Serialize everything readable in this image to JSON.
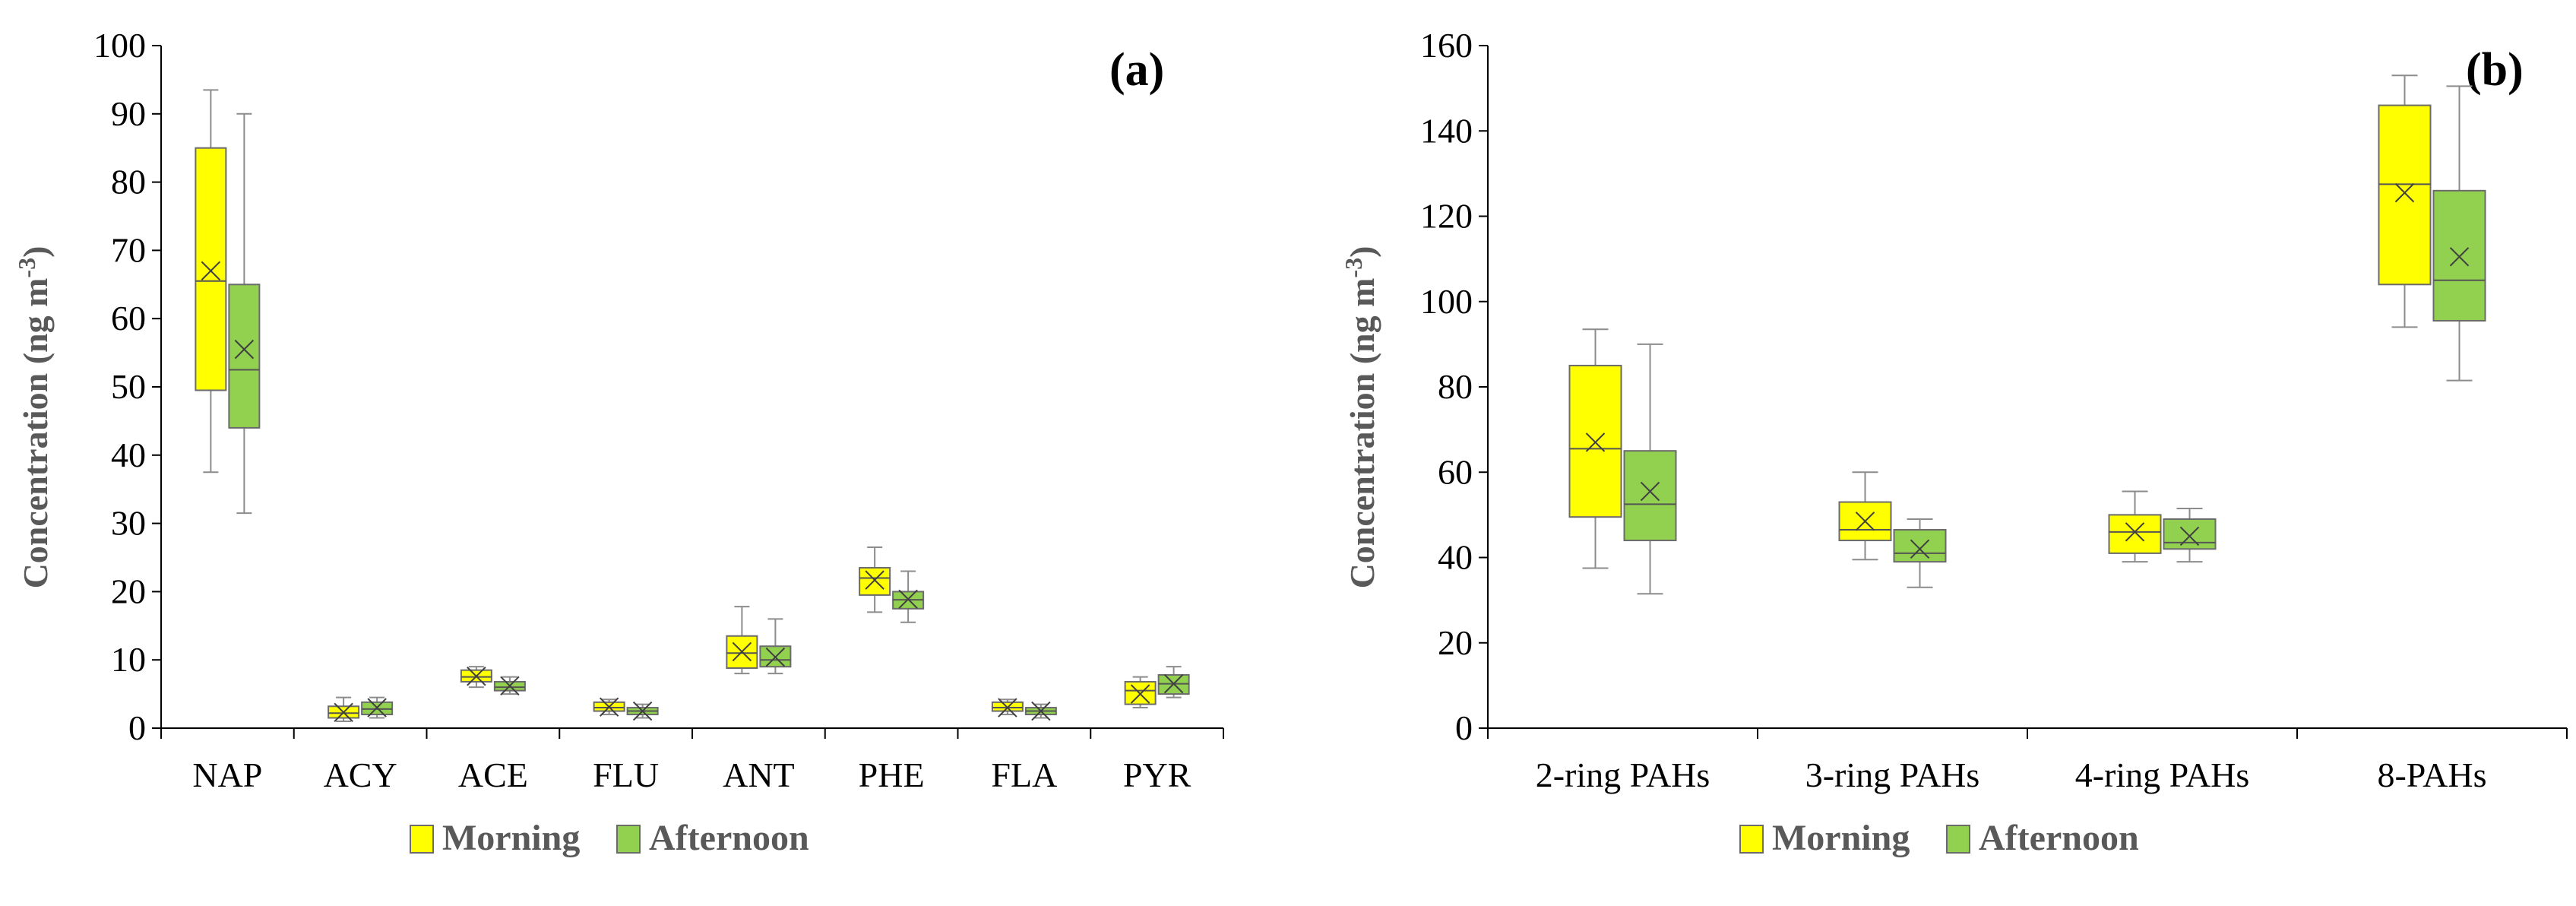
{
  "chart_data": [
    {
      "type": "box",
      "panel_label": "(a)",
      "title": "",
      "xlabel": "",
      "ylabel": "Concentration (ng m",
      "ylabel_sup": "-3",
      "ylabel_end": ")",
      "ylim": [
        0,
        100
      ],
      "yticks": [
        0,
        10,
        20,
        30,
        40,
        50,
        60,
        70,
        80,
        90,
        100
      ],
      "categories": [
        "NAP",
        "ACY",
        "ACE",
        "FLU",
        "ANT",
        "PHE",
        "FLA",
        "PYR"
      ],
      "series": [
        {
          "name": "Morning",
          "color": "#ffff00",
          "boxes": [
            {
              "min": 37.5,
              "q1": 49.5,
              "median": 65.5,
              "q3": 85.0,
              "max": 93.5,
              "mean": 67.0
            },
            {
              "min": 1.0,
              "q1": 1.5,
              "median": 2.2,
              "q3": 3.2,
              "max": 4.5,
              "mean": 2.3
            },
            {
              "min": 6.0,
              "q1": 6.8,
              "median": 7.5,
              "q3": 8.5,
              "max": 9.0,
              "mean": 7.6
            },
            {
              "min": 2.0,
              "q1": 2.5,
              "median": 3.0,
              "q3": 3.8,
              "max": 4.2,
              "mean": 3.1
            },
            {
              "min": 8.0,
              "q1": 8.8,
              "median": 11.0,
              "q3": 13.5,
              "max": 17.8,
              "mean": 11.2
            },
            {
              "min": 17.0,
              "q1": 19.5,
              "median": 22.0,
              "q3": 23.5,
              "max": 26.5,
              "mean": 21.7
            },
            {
              "min": 2.0,
              "q1": 2.5,
              "median": 3.0,
              "q3": 3.8,
              "max": 4.2,
              "mean": 3.0
            },
            {
              "min": 3.0,
              "q1": 3.5,
              "median": 5.5,
              "q3": 6.8,
              "max": 7.5,
              "mean": 5.0
            }
          ]
        },
        {
          "name": "Afternoon",
          "color": "#92d050",
          "boxes": [
            {
              "min": 31.5,
              "q1": 44.0,
              "median": 52.5,
              "q3": 65.0,
              "max": 90.0,
              "mean": 55.5
            },
            {
              "min": 1.5,
              "q1": 2.0,
              "median": 2.8,
              "q3": 3.8,
              "max": 4.5,
              "mean": 3.0
            },
            {
              "min": 5.0,
              "q1": 5.5,
              "median": 6.0,
              "q3": 6.8,
              "max": 7.5,
              "mean": 6.2
            },
            {
              "min": 1.5,
              "q1": 2.0,
              "median": 2.5,
              "q3": 3.0,
              "max": 3.5,
              "mean": 2.5
            },
            {
              "min": 8.0,
              "q1": 9.0,
              "median": 10.0,
              "q3": 12.0,
              "max": 16.0,
              "mean": 10.4
            },
            {
              "min": 15.5,
              "q1": 17.5,
              "median": 18.8,
              "q3": 20.0,
              "max": 23.0,
              "mean": 18.9
            },
            {
              "min": 1.5,
              "q1": 2.0,
              "median": 2.5,
              "q3": 3.0,
              "max": 3.5,
              "mean": 2.5
            },
            {
              "min": 4.5,
              "q1": 5.0,
              "median": 6.5,
              "q3": 7.8,
              "max": 9.0,
              "mean": 6.5
            }
          ]
        }
      ],
      "legend": {
        "position": "bottom",
        "entries": [
          "Morning",
          "Afternoon"
        ]
      }
    },
    {
      "type": "box",
      "panel_label": "(b)",
      "title": "",
      "xlabel": "",
      "ylabel": "Concentration (ng m",
      "ylabel_sup": "-3",
      "ylabel_end": ")",
      "ylim": [
        0,
        160
      ],
      "yticks": [
        0,
        20,
        40,
        60,
        80,
        100,
        120,
        140,
        160
      ],
      "categories": [
        "2-ring PAHs",
        "3-ring PAHs",
        "4-ring PAHs",
        "8-PAHs"
      ],
      "series": [
        {
          "name": "Morning",
          "color": "#ffff00",
          "boxes": [
            {
              "min": 37.5,
              "q1": 49.5,
              "median": 65.5,
              "q3": 85.0,
              "max": 93.5,
              "mean": 67.0
            },
            {
              "min": 39.5,
              "q1": 44.0,
              "median": 46.5,
              "q3": 53.0,
              "max": 60.0,
              "mean": 48.5
            },
            {
              "min": 39.0,
              "q1": 41.0,
              "median": 46.0,
              "q3": 50.0,
              "max": 55.5,
              "mean": 46.0
            },
            {
              "min": 94.0,
              "q1": 104.0,
              "median": 127.5,
              "q3": 146.0,
              "max": 153.0,
              "mean": 125.5
            }
          ]
        },
        {
          "name": "Afternoon",
          "color": "#92d050",
          "boxes": [
            {
              "min": 31.5,
              "q1": 44.0,
              "median": 52.5,
              "q3": 65.0,
              "max": 90.0,
              "mean": 55.5
            },
            {
              "min": 33.0,
              "q1": 39.0,
              "median": 41.0,
              "q3": 46.5,
              "max": 49.0,
              "mean": 42.0
            },
            {
              "min": 39.0,
              "q1": 42.0,
              "median": 43.5,
              "q3": 49.0,
              "max": 51.5,
              "mean": 45.0
            },
            {
              "min": 81.5,
              "q1": 95.5,
              "median": 105.0,
              "q3": 126.0,
              "max": 150.5,
              "mean": 110.5
            }
          ]
        }
      ],
      "legend": {
        "position": "bottom",
        "entries": [
          "Morning",
          "Afternoon"
        ]
      }
    }
  ]
}
